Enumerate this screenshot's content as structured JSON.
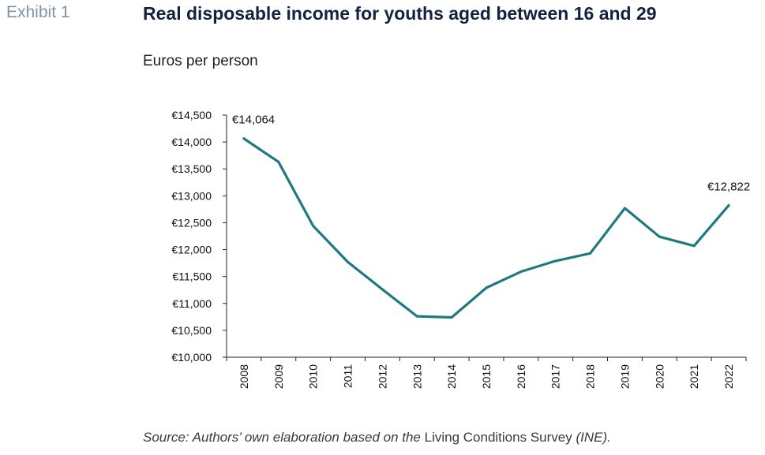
{
  "header": {
    "exhibit": "Exhibit 1",
    "title": "Real disposable income for youths aged between 16 and 29",
    "subtitle": "Euros per person"
  },
  "source": {
    "part1": "Source: Authors’ own elaboration based on the ",
    "part2": "Living Conditions Survey",
    "part3": " (INE)."
  },
  "chart_data": {
    "type": "line",
    "title": "Real disposable income for youths aged between 16 and 29",
    "ylabel": "Euros per person",
    "xlabel": "",
    "ylim": [
      10000,
      14500
    ],
    "ytick_step": 500,
    "ytick_prefix": "€",
    "grid": false,
    "line_color": "#1f7a80",
    "x": [
      "2008",
      "2009",
      "2010",
      "2011",
      "2012",
      "2013",
      "2014",
      "2015",
      "2016",
      "2017",
      "2018",
      "2019",
      "2020",
      "2021",
      "2022"
    ],
    "series": [
      {
        "values": [
          14064,
          13630,
          12440,
          11770,
          11260,
          10760,
          10740,
          11290,
          11590,
          11790,
          11930,
          12770,
          12240,
          12070,
          12822
        ]
      }
    ],
    "annotations": [
      {
        "index": 0,
        "text": "€14,064"
      },
      {
        "index": 14,
        "text": "€12,822"
      }
    ]
  }
}
